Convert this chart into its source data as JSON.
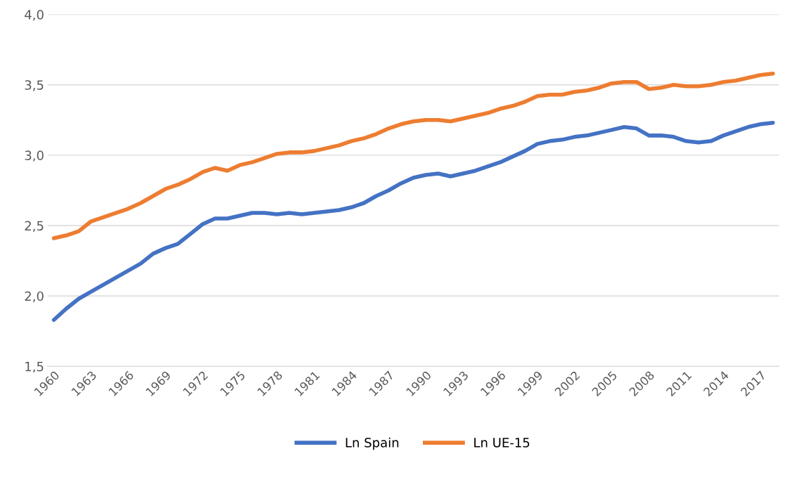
{
  "chart_data": {
    "type": "line",
    "categories": [
      "1960",
      null,
      null,
      "1963",
      null,
      null,
      "1966",
      null,
      null,
      "1969",
      null,
      null,
      "1972",
      null,
      null,
      "1975",
      null,
      null,
      "1978",
      null,
      null,
      "1981",
      null,
      null,
      "1984",
      null,
      null,
      "1987",
      null,
      null,
      "1990",
      null,
      null,
      "1993",
      null,
      null,
      "1996",
      null,
      null,
      "1999",
      null,
      null,
      "2002",
      null,
      null,
      "2005",
      null,
      null,
      "2008",
      null,
      null,
      "2011",
      null,
      null,
      "2014",
      null,
      null,
      "2017",
      null
    ],
    "series": [
      {
        "name": "Ln Spain",
        "color": "#4472c4",
        "values": [
          1.83,
          1.91,
          1.98,
          2.03,
          2.08,
          2.13,
          2.18,
          2.23,
          2.3,
          2.34,
          2.37,
          2.44,
          2.51,
          2.55,
          2.55,
          2.57,
          2.59,
          2.59,
          2.58,
          2.59,
          2.58,
          2.59,
          2.6,
          2.61,
          2.63,
          2.66,
          2.71,
          2.75,
          2.8,
          2.84,
          2.86,
          2.87,
          2.85,
          2.87,
          2.89,
          2.92,
          2.95,
          2.99,
          3.03,
          3.08,
          3.1,
          3.11,
          3.13,
          3.14,
          3.16,
          3.18,
          3.2,
          3.19,
          3.14,
          3.14,
          3.13,
          3.1,
          3.09,
          3.1,
          3.14,
          3.17,
          3.2,
          3.22,
          3.23
        ]
      },
      {
        "name": "Ln UE-15",
        "color": "#ed7d31",
        "values": [
          2.41,
          2.43,
          2.46,
          2.53,
          2.56,
          2.59,
          2.62,
          2.66,
          2.71,
          2.76,
          2.79,
          2.83,
          2.88,
          2.91,
          2.89,
          2.93,
          2.95,
          2.98,
          3.01,
          3.02,
          3.02,
          3.03,
          3.05,
          3.07,
          3.1,
          3.12,
          3.15,
          3.19,
          3.22,
          3.24,
          3.25,
          3.25,
          3.24,
          3.26,
          3.28,
          3.3,
          3.33,
          3.35,
          3.38,
          3.42,
          3.43,
          3.43,
          3.45,
          3.46,
          3.48,
          3.51,
          3.52,
          3.52,
          3.47,
          3.48,
          3.5,
          3.49,
          3.49,
          3.5,
          3.52,
          3.53,
          3.55,
          3.57,
          3.58
        ]
      }
    ],
    "ylim": [
      1.5,
      4.0
    ],
    "yticks": [
      {
        "value": 1.5,
        "label": "1,5"
      },
      {
        "value": 2.0,
        "label": "2,0"
      },
      {
        "value": 2.5,
        "label": "2,5"
      },
      {
        "value": 3.0,
        "label": "3,0"
      },
      {
        "value": 3.5,
        "label": "3,5"
      },
      {
        "value": 4.0,
        "label": "4,0"
      }
    ],
    "grid": "y",
    "legend": "bottom",
    "marker": "none",
    "line_style": "solid"
  }
}
